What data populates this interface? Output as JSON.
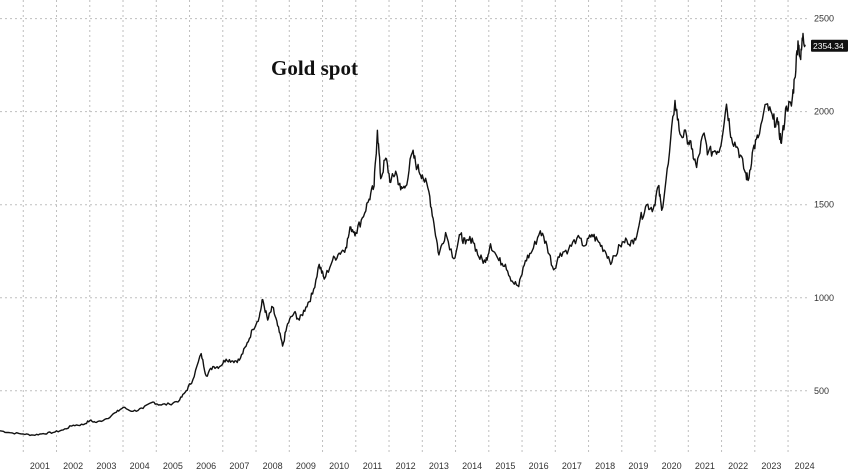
{
  "chart_data": {
    "type": "line",
    "title": "Gold spot",
    "xlabel": "",
    "ylabel": "",
    "x_ticks": [
      "2001",
      "2002",
      "2003",
      "2004",
      "2005",
      "2006",
      "2007",
      "2008",
      "2009",
      "2010",
      "2011",
      "2012",
      "2013",
      "2014",
      "2015",
      "2016",
      "2017",
      "2018",
      "2019",
      "2020",
      "2021",
      "2022",
      "2023",
      "2024"
    ],
    "y_ticks": [
      500,
      1000,
      1500,
      2000,
      2500
    ],
    "xlim": [
      2000.3,
      2024.6
    ],
    "ylim": [
      155,
      2600
    ],
    "grid": true,
    "last_value_label": "2354.34",
    "colors": {
      "line": "#111111",
      "label_bg": "#111111",
      "grid": "#bfbfbf"
    },
    "series": [
      {
        "values": [
          [
            2000.3,
            285
          ],
          [
            2000.6,
            275
          ],
          [
            2001.0,
            268
          ],
          [
            2001.3,
            262
          ],
          [
            2001.6,
            270
          ],
          [
            2001.9,
            276
          ],
          [
            2002.2,
            290
          ],
          [
            2002.5,
            315
          ],
          [
            2002.8,
            318
          ],
          [
            2003.0,
            340
          ],
          [
            2003.2,
            330
          ],
          [
            2003.5,
            350
          ],
          [
            2003.8,
            385
          ],
          [
            2004.0,
            410
          ],
          [
            2004.3,
            390
          ],
          [
            2004.6,
            405
          ],
          [
            2004.9,
            440
          ],
          [
            2005.1,
            425
          ],
          [
            2005.4,
            428
          ],
          [
            2005.7,
            450
          ],
          [
            2005.9,
            500
          ],
          [
            2006.1,
            560
          ],
          [
            2006.35,
            700
          ],
          [
            2006.5,
            580
          ],
          [
            2006.7,
            630
          ],
          [
            2006.9,
            630
          ],
          [
            2007.1,
            670
          ],
          [
            2007.3,
            660
          ],
          [
            2007.5,
            665
          ],
          [
            2007.7,
            740
          ],
          [
            2007.9,
            830
          ],
          [
            2008.1,
            900
          ],
          [
            2008.2,
            990
          ],
          [
            2008.35,
            880
          ],
          [
            2008.5,
            950
          ],
          [
            2008.65,
            850
          ],
          [
            2008.8,
            740
          ],
          [
            2008.95,
            860
          ],
          [
            2009.15,
            920
          ],
          [
            2009.3,
            880
          ],
          [
            2009.5,
            950
          ],
          [
            2009.7,
            1020
          ],
          [
            2009.9,
            1180
          ],
          [
            2010.05,
            1100
          ],
          [
            2010.3,
            1200
          ],
          [
            2010.5,
            1240
          ],
          [
            2010.7,
            1270
          ],
          [
            2010.85,
            1380
          ],
          [
            2011.0,
            1350
          ],
          [
            2011.2,
            1430
          ],
          [
            2011.4,
            1530
          ],
          [
            2011.55,
            1600
          ],
          [
            2011.65,
            1900
          ],
          [
            2011.75,
            1640
          ],
          [
            2011.9,
            1750
          ],
          [
            2012.05,
            1620
          ],
          [
            2012.2,
            1680
          ],
          [
            2012.35,
            1580
          ],
          [
            2012.5,
            1600
          ],
          [
            2012.7,
            1780
          ],
          [
            2012.85,
            1700
          ],
          [
            2013.0,
            1660
          ],
          [
            2013.2,
            1570
          ],
          [
            2013.35,
            1400
          ],
          [
            2013.5,
            1230
          ],
          [
            2013.7,
            1350
          ],
          [
            2013.95,
            1210
          ],
          [
            2014.15,
            1340
          ],
          [
            2014.3,
            1290
          ],
          [
            2014.5,
            1320
          ],
          [
            2014.7,
            1220
          ],
          [
            2014.9,
            1190
          ],
          [
            2015.05,
            1290
          ],
          [
            2015.3,
            1200
          ],
          [
            2015.5,
            1180
          ],
          [
            2015.7,
            1090
          ],
          [
            2015.9,
            1060
          ],
          [
            2016.1,
            1200
          ],
          [
            2016.3,
            1250
          ],
          [
            2016.55,
            1360
          ],
          [
            2016.75,
            1280
          ],
          [
            2016.95,
            1150
          ],
          [
            2017.15,
            1240
          ],
          [
            2017.4,
            1260
          ],
          [
            2017.65,
            1320
          ],
          [
            2017.9,
            1280
          ],
          [
            2018.1,
            1340
          ],
          [
            2018.3,
            1300
          ],
          [
            2018.5,
            1250
          ],
          [
            2018.7,
            1190
          ],
          [
            2018.95,
            1280
          ],
          [
            2019.15,
            1310
          ],
          [
            2019.35,
            1290
          ],
          [
            2019.55,
            1420
          ],
          [
            2019.75,
            1500
          ],
          [
            2019.95,
            1480
          ],
          [
            2020.1,
            1600
          ],
          [
            2020.2,
            1470
          ],
          [
            2020.4,
            1720
          ],
          [
            2020.6,
            2060
          ],
          [
            2020.75,
            1880
          ],
          [
            2020.95,
            1870
          ],
          [
            2021.1,
            1800
          ],
          [
            2021.25,
            1700
          ],
          [
            2021.45,
            1880
          ],
          [
            2021.6,
            1780
          ],
          [
            2021.8,
            1790
          ],
          [
            2021.95,
            1800
          ],
          [
            2022.15,
            2040
          ],
          [
            2022.3,
            1860
          ],
          [
            2022.5,
            1800
          ],
          [
            2022.7,
            1680
          ],
          [
            2022.8,
            1630
          ],
          [
            2022.95,
            1800
          ],
          [
            2023.1,
            1860
          ],
          [
            2023.35,
            2040
          ],
          [
            2023.55,
            1960
          ],
          [
            2023.7,
            1930
          ],
          [
            2023.8,
            1830
          ],
          [
            2023.95,
            2030
          ],
          [
            2024.1,
            2030
          ],
          [
            2024.2,
            2180
          ],
          [
            2024.3,
            2380
          ],
          [
            2024.38,
            2280
          ],
          [
            2024.45,
            2420
          ],
          [
            2024.52,
            2354
          ]
        ]
      }
    ]
  }
}
